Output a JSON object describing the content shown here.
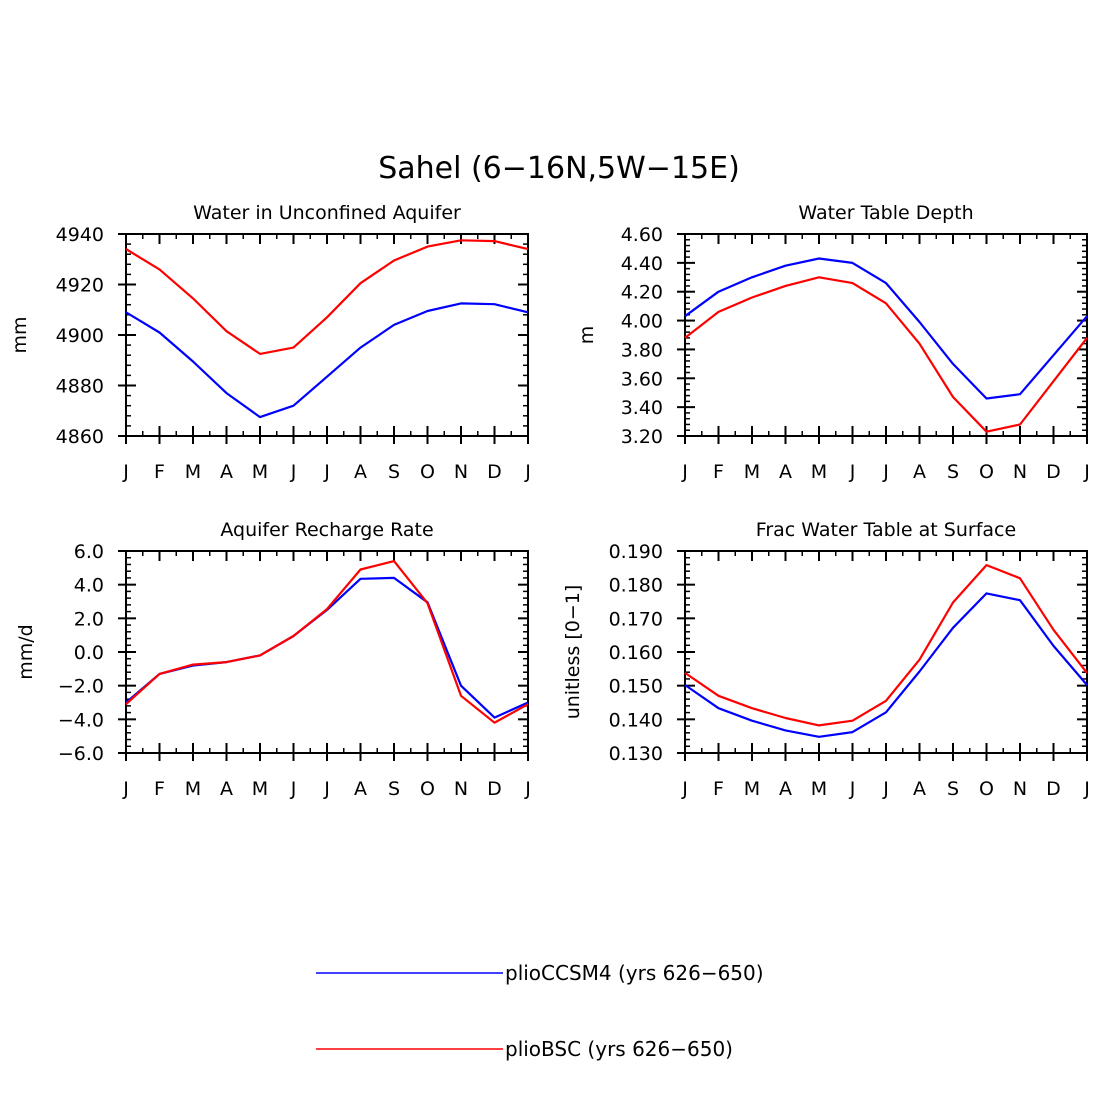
{
  "figure": {
    "title": "Sahel (6−16N,5W−15E)"
  },
  "colors": {
    "series_1": "#0000ff",
    "series_2": "#ff0000",
    "axis": "#000000"
  },
  "legend": [
    {
      "label": "plioCCSM4 (yrs 626−650)",
      "color": "#0000ff"
    },
    {
      "label": "plioBSC (yrs 626−650)",
      "color": "#ff0000"
    }
  ],
  "chart_data": [
    {
      "type": "line",
      "title": "Water in Unconfined Aquifer",
      "xlabel": "",
      "ylabel": "mm",
      "categories": [
        "J",
        "F",
        "M",
        "A",
        "M",
        "J",
        "J",
        "A",
        "S",
        "O",
        "N",
        "D",
        "J"
      ],
      "ylim": [
        4860,
        4940
      ],
      "yticks": [
        "4860",
        "4880",
        "4900",
        "4920",
        "4940"
      ],
      "yticks_values": [
        4860,
        4880,
        4900,
        4920,
        4940
      ],
      "series": [
        {
          "name": "plioCCSM4 (yrs 626−650)",
          "color": "#0000ff",
          "values": [
            4909,
            4901,
            4889.5,
            4877,
            4867.5,
            4872,
            4883.5,
            4895,
            4904,
            4909.5,
            4912.5,
            4912.2,
            4909
          ]
        },
        {
          "name": "plioBSC (yrs 626−650)",
          "color": "#ff0000",
          "values": [
            4934,
            4926,
            4914.5,
            4901.5,
            4892.5,
            4895,
            4907,
            4920.5,
            4929.5,
            4935,
            4937.5,
            4937.2,
            4934
          ]
        }
      ]
    },
    {
      "type": "line",
      "title": "Water Table Depth",
      "xlabel": "",
      "ylabel": "m",
      "categories": [
        "J",
        "F",
        "M",
        "A",
        "M",
        "J",
        "J",
        "A",
        "S",
        "O",
        "N",
        "D",
        "J"
      ],
      "ylim": [
        3.2,
        4.6
      ],
      "yticks": [
        "3.20",
        "3.40",
        "3.60",
        "3.80",
        "4.00",
        "4.20",
        "4.40",
        "4.60"
      ],
      "yticks_values": [
        3.2,
        3.4,
        3.6,
        3.8,
        4.0,
        4.2,
        4.4,
        4.6
      ],
      "series": [
        {
          "name": "plioCCSM4 (yrs 626−650)",
          "color": "#0000ff",
          "values": [
            4.03,
            4.2,
            4.3,
            4.38,
            4.43,
            4.4,
            4.26,
            3.99,
            3.7,
            3.46,
            3.49,
            3.76,
            4.03
          ]
        },
        {
          "name": "plioBSC (yrs 626−650)",
          "color": "#ff0000",
          "values": [
            3.88,
            4.06,
            4.16,
            4.24,
            4.3,
            4.26,
            4.12,
            3.84,
            3.47,
            3.23,
            3.28,
            3.58,
            3.88
          ]
        }
      ]
    },
    {
      "type": "line",
      "title": "Aquifer Recharge Rate",
      "xlabel": "",
      "ylabel": "mm/d",
      "categories": [
        "J",
        "F",
        "M",
        "A",
        "M",
        "J",
        "J",
        "A",
        "S",
        "O",
        "N",
        "D",
        "J"
      ],
      "ylim": [
        -6.0,
        6.0
      ],
      "yticks": [
        "−6.0",
        "−4.0",
        "−2.0",
        "0.0",
        "2.0",
        "4.0",
        "6.0"
      ],
      "yticks_values": [
        -6,
        -4,
        -2,
        0,
        2,
        4,
        6
      ],
      "series": [
        {
          "name": "plioCCSM4 (yrs 626−650)",
          "color": "#0000ff",
          "values": [
            -3.0,
            -1.3,
            -0.8,
            -0.6,
            -0.2,
            0.95,
            2.5,
            4.35,
            4.4,
            2.95,
            -2.0,
            -3.9,
            -3.0
          ]
        },
        {
          "name": "plioBSC (yrs 626−650)",
          "color": "#ff0000",
          "values": [
            -3.1,
            -1.3,
            -0.75,
            -0.6,
            -0.2,
            0.95,
            2.55,
            4.9,
            5.4,
            2.9,
            -2.6,
            -4.2,
            -3.1
          ]
        }
      ]
    },
    {
      "type": "line",
      "title": "Frac Water Table at Surface",
      "xlabel": "",
      "ylabel": "unitless [0−1]",
      "categories": [
        "J",
        "F",
        "M",
        "A",
        "M",
        "J",
        "J",
        "A",
        "S",
        "O",
        "N",
        "D",
        "J"
      ],
      "ylim": [
        0.13,
        0.19
      ],
      "yticks": [
        "0.130",
        "0.140",
        "0.150",
        "0.160",
        "0.170",
        "0.180",
        "0.190"
      ],
      "yticks_values": [
        0.13,
        0.14,
        0.15,
        0.16,
        0.17,
        0.18,
        0.19
      ],
      "series": [
        {
          "name": "plioCCSM4 (yrs 626−650)",
          "color": "#0000ff",
          "values": [
            0.1502,
            0.1433,
            0.1396,
            0.1367,
            0.1348,
            0.1362,
            0.1421,
            0.1542,
            0.1672,
            0.1774,
            0.1754,
            0.1618,
            0.1502
          ]
        },
        {
          "name": "plioBSC (yrs 626−650)",
          "color": "#ff0000",
          "values": [
            0.1538,
            0.147,
            0.1433,
            0.1404,
            0.1382,
            0.1396,
            0.1455,
            0.1577,
            0.1747,
            0.1858,
            0.1819,
            0.1666,
            0.1538
          ]
        }
      ]
    }
  ]
}
